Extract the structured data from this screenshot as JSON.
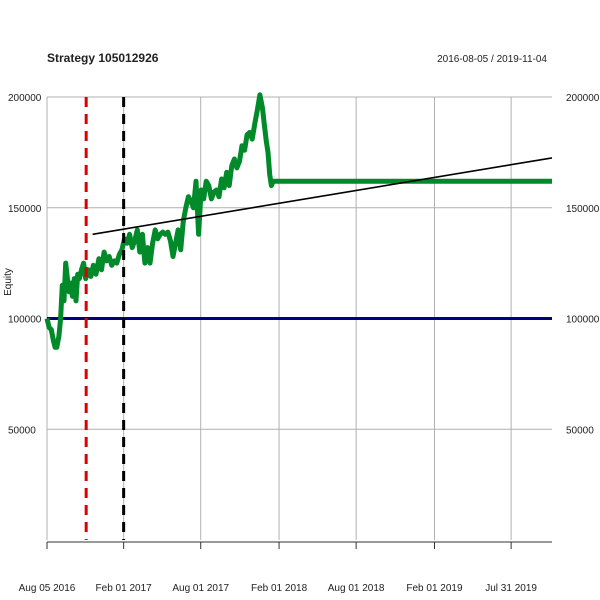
{
  "chart_data": {
    "type": "line",
    "title": "Strategy 105012926",
    "date_range": "2016-08-05 / 2019-11-04",
    "ylabel": "Equity",
    "xlabel": "",
    "xlim": [
      "2016-08-05",
      "2019-11-04"
    ],
    "ylim": [
      0,
      200000
    ],
    "grid": true,
    "y_ticks": [
      50000,
      100000,
      150000,
      200000
    ],
    "y_tick_labels": [
      "50000",
      "100000",
      "150000",
      "200000"
    ],
    "x_ticks": [
      "2016-08-05",
      "2017-02-01",
      "2017-08-01",
      "2018-02-01",
      "2018-08-01",
      "2019-02-01",
      "2019-07-31"
    ],
    "x_tick_labels": [
      "Aug 05 2016",
      "Feb 01 2017",
      "Aug 01 2017",
      "Feb 01 2018",
      "Aug 01 2018",
      "Feb 01 2019",
      "Jul 31 2019"
    ],
    "colors": {
      "equity": "#008a2a",
      "baseline": "#000080",
      "trend": "#000000",
      "marker_red": "#dd0000",
      "marker_black": "#000000",
      "grid": "#b0b0b0"
    },
    "series": [
      {
        "role": "equity",
        "x": [
          "2016-08-05",
          "2016-08-10",
          "2016-08-15",
          "2016-08-20",
          "2016-08-24",
          "2016-08-28",
          "2016-09-02",
          "2016-09-06",
          "2016-09-10",
          "2016-09-14",
          "2016-09-18",
          "2016-09-22",
          "2016-09-26",
          "2016-09-30",
          "2016-10-04",
          "2016-10-08",
          "2016-10-12",
          "2016-10-16",
          "2016-10-20",
          "2016-10-25",
          "2016-10-30",
          "2016-11-04",
          "2016-11-10",
          "2016-11-16",
          "2016-11-22",
          "2016-11-28",
          "2016-12-05",
          "2016-12-11",
          "2016-12-17",
          "2016-12-23",
          "2016-12-29",
          "2017-01-04",
          "2017-01-10",
          "2017-01-16",
          "2017-01-22",
          "2017-01-28",
          "2017-02-03",
          "2017-02-09",
          "2017-02-15",
          "2017-02-21",
          "2017-02-27",
          "2017-03-05",
          "2017-03-11",
          "2017-03-17",
          "2017-03-23",
          "2017-03-29",
          "2017-04-04",
          "2017-04-10",
          "2017-04-16",
          "2017-04-22",
          "2017-04-28",
          "2017-05-04",
          "2017-05-10",
          "2017-05-16",
          "2017-05-22",
          "2017-05-28",
          "2017-06-03",
          "2017-06-09",
          "2017-06-15",
          "2017-06-21",
          "2017-06-27",
          "2017-07-03",
          "2017-07-09",
          "2017-07-15",
          "2017-07-21",
          "2017-07-27",
          "2017-08-02",
          "2017-08-08",
          "2017-08-14",
          "2017-08-20",
          "2017-08-26",
          "2017-09-01",
          "2017-09-07",
          "2017-09-13",
          "2017-09-19",
          "2017-09-25",
          "2017-10-01",
          "2017-10-07",
          "2017-10-13",
          "2017-10-19",
          "2017-10-25",
          "2017-10-31",
          "2017-11-06",
          "2017-11-12",
          "2017-11-18",
          "2017-11-24",
          "2017-11-30",
          "2017-12-06",
          "2017-12-12",
          "2017-12-18",
          "2017-12-24",
          "2017-12-28",
          "2018-01-02",
          "2018-01-06",
          "2018-01-10",
          "2018-01-14",
          "2018-01-18",
          "2018-01-22",
          "2018-01-26",
          "2018-02-01",
          "2018-02-03",
          "2019-11-04"
        ],
        "y": [
          100000,
          96000,
          95000,
          90000,
          87000,
          87000,
          92000,
          100000,
          115000,
          108000,
          125000,
          118000,
          112000,
          116000,
          110000,
          118000,
          108000,
          120000,
          118000,
          122000,
          125000,
          118000,
          122000,
          119000,
          124000,
          120000,
          127000,
          122000,
          130000,
          126000,
          128000,
          124000,
          126000,
          125000,
          129000,
          131000,
          136000,
          134000,
          138000,
          132000,
          135000,
          140000,
          130000,
          138000,
          125000,
          132000,
          125000,
          134000,
          140000,
          136000,
          138000,
          139000,
          138000,
          139000,
          135000,
          128000,
          134000,
          140000,
          131000,
          144000,
          150000,
          155000,
          153000,
          150000,
          162000,
          138000,
          158000,
          154000,
          162000,
          160000,
          154000,
          157000,
          158000,
          155000,
          163000,
          159000,
          166000,
          160000,
          169000,
          172000,
          168000,
          171000,
          178000,
          176000,
          183000,
          184000,
          181000,
          188000,
          194000,
          201000,
          195000,
          188000,
          180000,
          175000,
          165000,
          160000,
          162000,
          162000,
          162000,
          162000,
          162000,
          162000
        ]
      },
      {
        "role": "baseline",
        "x": [
          "2016-08-05",
          "2019-11-04"
        ],
        "y": [
          100000,
          100000
        ]
      },
      {
        "role": "trend",
        "x": [
          "2016-11-20",
          "2019-11-04"
        ],
        "y": [
          138000,
          172500
        ]
      }
    ],
    "vlines": [
      {
        "role": "marker_red",
        "x": "2016-11-05"
      },
      {
        "role": "marker_black",
        "x": "2017-02-01"
      }
    ]
  }
}
